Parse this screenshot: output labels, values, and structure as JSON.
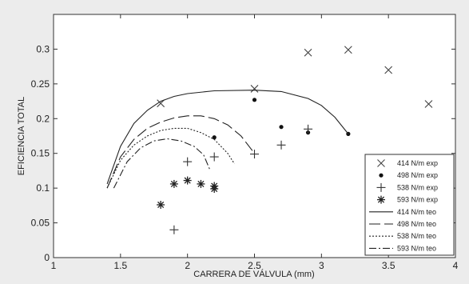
{
  "chart_data": {
    "type": "scatter",
    "title": "",
    "xlabel": "CARRERA DE VÁLVULA (mm)",
    "ylabel": "EFICIENCIA TOTAL",
    "xlim": [
      1,
      4
    ],
    "ylim": [
      0,
      0.35
    ],
    "xticks": [
      "1",
      "1.5",
      "2",
      "2.5",
      "3",
      "3.5",
      "4"
    ],
    "yticks": [
      "0",
      "0.05",
      "0.1",
      "0.15",
      "0.2",
      "0.25",
      "0.3"
    ],
    "grid": false,
    "legend_position": "bottom-right",
    "series": [
      {
        "name": "414 N/m exp",
        "kind": "marker",
        "marker": "x",
        "points": [
          [
            1.8,
            0.222
          ],
          [
            2.5,
            0.243
          ],
          [
            2.9,
            0.295
          ],
          [
            3.2,
            0.299
          ],
          [
            3.5,
            0.27
          ],
          [
            3.8,
            0.221
          ]
        ]
      },
      {
        "name": "498 N/m exp",
        "kind": "marker",
        "marker": "dot",
        "points": [
          [
            2.2,
            0.173
          ],
          [
            2.5,
            0.227
          ],
          [
            2.7,
            0.188
          ],
          [
            2.9,
            0.18
          ],
          [
            3.2,
            0.178
          ]
        ]
      },
      {
        "name": "538 N/m exp",
        "kind": "marker",
        "marker": "plus",
        "points": [
          [
            1.9,
            0.04
          ],
          [
            2.0,
            0.138
          ],
          [
            2.2,
            0.145
          ],
          [
            2.5,
            0.149
          ],
          [
            2.7,
            0.162
          ],
          [
            2.9,
            0.185
          ]
        ]
      },
      {
        "name": "593 N/m exp",
        "kind": "marker",
        "marker": "star",
        "points": [
          [
            1.8,
            0.076
          ],
          [
            1.9,
            0.106
          ],
          [
            2.0,
            0.111
          ],
          [
            2.1,
            0.106
          ],
          [
            2.2,
            0.103
          ],
          [
            2.2,
            0.099
          ]
        ]
      },
      {
        "name": "414 N/m teo",
        "kind": "line",
        "dash": "solid",
        "points": [
          [
            1.4,
            0.106
          ],
          [
            1.5,
            0.16
          ],
          [
            1.6,
            0.193
          ],
          [
            1.7,
            0.212
          ],
          [
            1.8,
            0.225
          ],
          [
            1.9,
            0.232
          ],
          [
            2.0,
            0.236
          ],
          [
            2.2,
            0.24
          ],
          [
            2.5,
            0.241
          ],
          [
            2.7,
            0.239
          ],
          [
            2.9,
            0.229
          ],
          [
            3.0,
            0.219
          ],
          [
            3.1,
            0.202
          ],
          [
            3.2,
            0.178
          ]
        ]
      },
      {
        "name": "498 N/m teo",
        "kind": "line",
        "dash": "long-dash",
        "points": [
          [
            1.4,
            0.1
          ],
          [
            1.5,
            0.145
          ],
          [
            1.6,
            0.17
          ],
          [
            1.7,
            0.186
          ],
          [
            1.8,
            0.195
          ],
          [
            1.9,
            0.201
          ],
          [
            2.0,
            0.204
          ],
          [
            2.1,
            0.204
          ],
          [
            2.2,
            0.2
          ],
          [
            2.3,
            0.191
          ],
          [
            2.4,
            0.175
          ],
          [
            2.5,
            0.15
          ]
        ]
      },
      {
        "name": "538 N/m teo",
        "kind": "line",
        "dash": "dotted",
        "points": [
          [
            1.4,
            0.1
          ],
          [
            1.5,
            0.14
          ],
          [
            1.6,
            0.162
          ],
          [
            1.7,
            0.175
          ],
          [
            1.8,
            0.183
          ],
          [
            1.9,
            0.186
          ],
          [
            2.0,
            0.186
          ],
          [
            2.1,
            0.18
          ],
          [
            2.2,
            0.17
          ],
          [
            2.3,
            0.15
          ],
          [
            2.35,
            0.135
          ]
        ]
      },
      {
        "name": "593 N/m teo",
        "kind": "line",
        "dash": "dash-dot",
        "points": [
          [
            1.45,
            0.1
          ],
          [
            1.55,
            0.138
          ],
          [
            1.65,
            0.158
          ],
          [
            1.75,
            0.168
          ],
          [
            1.85,
            0.171
          ],
          [
            1.95,
            0.168
          ],
          [
            2.05,
            0.16
          ],
          [
            2.12,
            0.148
          ],
          [
            2.17,
            0.125
          ]
        ]
      }
    ]
  }
}
